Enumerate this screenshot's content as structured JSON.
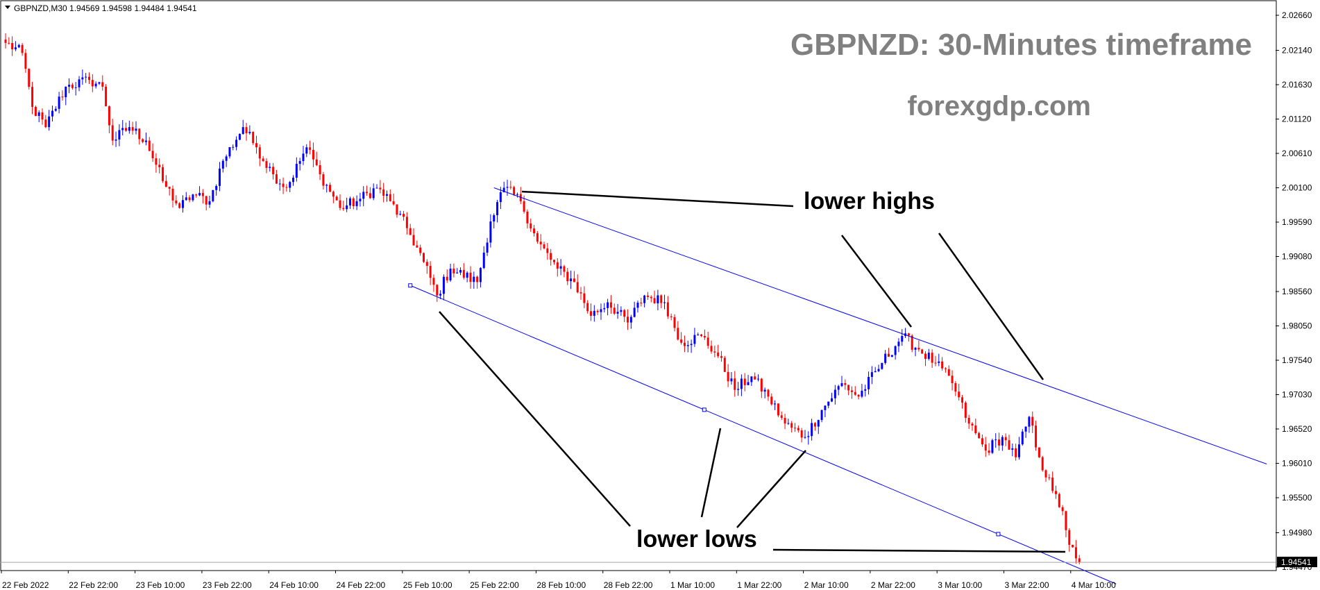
{
  "header": {
    "symbol_text": "GBPNZD,M30 1.94569 1.94598 1.94484 1.94541",
    "indicator_icon": "triangle-down-icon"
  },
  "watermark": {
    "title": "GBPNZD: 30-Minutes timeframe",
    "site": "forexgdp.com"
  },
  "annotations": {
    "lower_highs": "lower highs",
    "lower_lows": "lower lows"
  },
  "current_price_label": "1.94541",
  "colors": {
    "bull": "#0000ff",
    "bear": "#ff0000",
    "channel": "#0000ff",
    "annotation_line": "#000000",
    "price_tag_bg": "#000000",
    "watermark": "#808080"
  },
  "chart_data": {
    "type": "candlestick",
    "title": "GBPNZD: 30-Minutes timeframe",
    "symbol": "GBPNZD",
    "timeframe": "M30",
    "ylim": [
      1.942,
      2.029
    ],
    "y_ticks": [
      "2.02660",
      "2.02140",
      "2.01630",
      "2.01120",
      "2.00610",
      "2.00100",
      "1.99590",
      "1.99080",
      "1.98560",
      "1.98050",
      "1.97540",
      "1.97030",
      "1.96520",
      "1.96010",
      "1.95500",
      "1.94980",
      "1.94470"
    ],
    "x_ticks": [
      "22 Feb 2022",
      "22 Feb 22:00",
      "23 Feb 10:00",
      "23 Feb 22:00",
      "24 Feb 10:00",
      "24 Feb 22:00",
      "25 Feb 10:00",
      "25 Feb 22:00",
      "28 Feb 10:00",
      "28 Feb 22:00",
      "1 Mar 10:00",
      "1 Mar 22:00",
      "2 Mar 10:00",
      "2 Mar 22:00",
      "3 Mar 10:00",
      "3 Mar 22:00",
      "4 Mar 10:00"
    ],
    "close_anchors": [
      {
        "bar": 0,
        "close": 2.0225
      },
      {
        "bar": 5,
        "close": 2.021
      },
      {
        "bar": 8,
        "close": 2.013
      },
      {
        "bar": 12,
        "close": 2.01
      },
      {
        "bar": 18,
        "close": 2.016
      },
      {
        "bar": 25,
        "close": 2.017
      },
      {
        "bar": 29,
        "close": 2.016
      },
      {
        "bar": 32,
        "close": 2.008
      },
      {
        "bar": 37,
        "close": 2.01
      },
      {
        "bar": 42,
        "close": 2.008
      },
      {
        "bar": 47,
        "close": 2.002
      },
      {
        "bar": 52,
        "close": 1.998
      },
      {
        "bar": 56,
        "close": 2.0
      },
      {
        "bar": 61,
        "close": 1.999
      },
      {
        "bar": 65,
        "close": 2.005
      },
      {
        "bar": 71,
        "close": 2.01
      },
      {
        "bar": 75,
        "close": 2.007
      },
      {
        "bar": 80,
        "close": 2.003
      },
      {
        "bar": 84,
        "close": 2.001
      },
      {
        "bar": 90,
        "close": 2.007
      },
      {
        "bar": 94,
        "close": 2.003
      },
      {
        "bar": 100,
        "close": 1.998
      },
      {
        "bar": 105,
        "close": 1.999
      },
      {
        "bar": 111,
        "close": 2.001
      },
      {
        "bar": 115,
        "close": 1.999
      },
      {
        "bar": 120,
        "close": 1.995
      },
      {
        "bar": 125,
        "close": 1.99
      },
      {
        "bar": 129,
        "close": 1.985
      },
      {
        "bar": 133,
        "close": 1.989
      },
      {
        "bar": 141,
        "close": 1.987
      },
      {
        "bar": 145,
        "close": 1.996
      },
      {
        "bar": 149,
        "close": 2.001
      },
      {
        "bar": 154,
        "close": 1.999
      },
      {
        "bar": 159,
        "close": 1.993
      },
      {
        "bar": 165,
        "close": 1.989
      },
      {
        "bar": 170,
        "close": 1.987
      },
      {
        "bar": 175,
        "close": 1.982
      },
      {
        "bar": 180,
        "close": 1.984
      },
      {
        "bar": 186,
        "close": 1.981
      },
      {
        "bar": 191,
        "close": 1.985
      },
      {
        "bar": 197,
        "close": 1.984
      },
      {
        "bar": 202,
        "close": 1.978
      },
      {
        "bar": 208,
        "close": 1.979
      },
      {
        "bar": 213,
        "close": 1.976
      },
      {
        "bar": 218,
        "close": 1.971
      },
      {
        "bar": 223,
        "close": 1.973
      },
      {
        "bar": 228,
        "close": 1.97
      },
      {
        "bar": 233,
        "close": 1.966
      },
      {
        "bar": 239,
        "close": 1.964
      },
      {
        "bar": 244,
        "close": 1.968
      },
      {
        "bar": 250,
        "close": 1.972
      },
      {
        "bar": 255,
        "close": 1.97
      },
      {
        "bar": 262,
        "close": 1.975
      },
      {
        "bar": 268,
        "close": 1.979
      },
      {
        "bar": 273,
        "close": 1.977
      },
      {
        "bar": 278,
        "close": 1.975
      },
      {
        "bar": 283,
        "close": 1.972
      },
      {
        "bar": 288,
        "close": 1.966
      },
      {
        "bar": 293,
        "close": 1.962
      },
      {
        "bar": 298,
        "close": 1.964
      },
      {
        "bar": 302,
        "close": 1.961
      },
      {
        "bar": 306,
        "close": 1.967
      },
      {
        "bar": 309,
        "close": 1.961
      },
      {
        "bar": 313,
        "close": 1.956
      },
      {
        "bar": 316,
        "close": 1.953
      },
      {
        "bar": 318,
        "close": 1.948
      },
      {
        "bar": 320,
        "close": 1.946
      },
      {
        "bar": 321,
        "close": 1.94541
      }
    ],
    "channel_upper": {
      "from": {
        "bar": 146,
        "price": 2.001
      },
      "to": {
        "bar": 377,
        "price": 1.96
      }
    },
    "channel_lower": {
      "from": {
        "bar": 121,
        "price": 1.9865
      },
      "to": {
        "bar": 332,
        "price": 1.9422
      }
    },
    "current_price": 1.94541
  }
}
